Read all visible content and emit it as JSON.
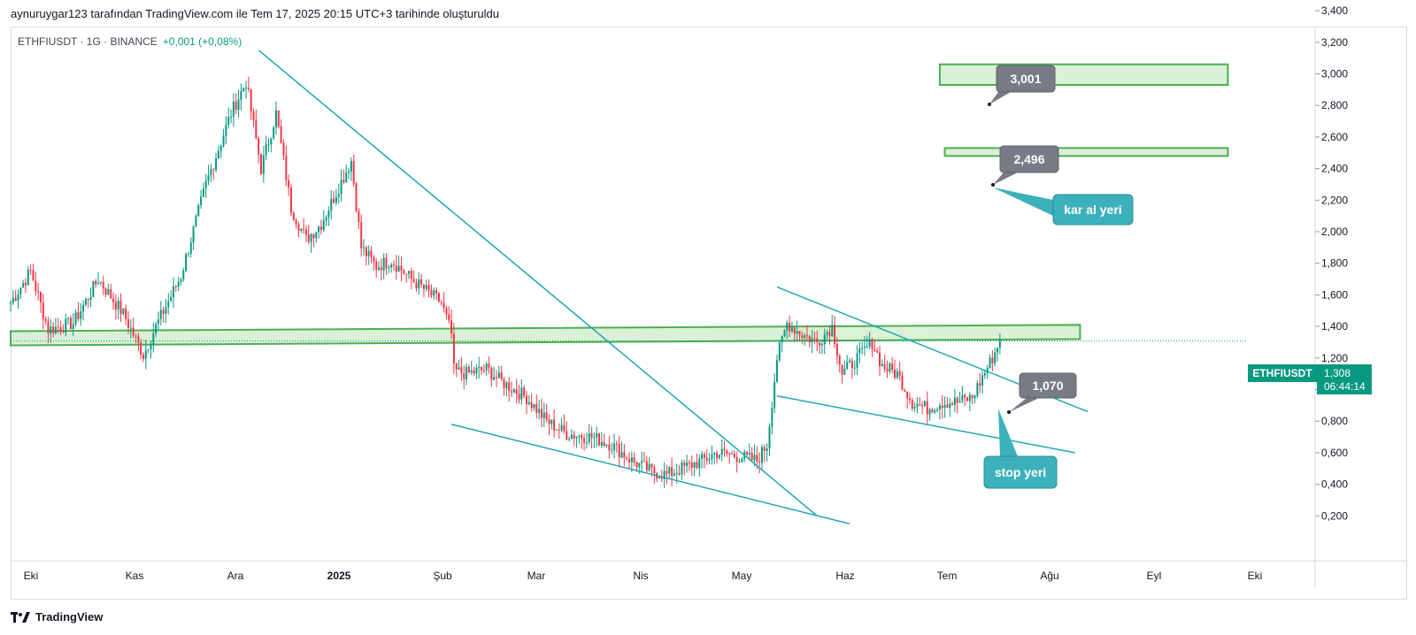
{
  "header": {
    "title": "aynuruygar123 tarafından TradingView.com ile Tem 17, 2025 20:15 UTC+3 tarihinde oluşturuldu"
  },
  "legend": {
    "symbol": "ETHFIUSDT · 1G · BINANCE",
    "change": "+0,001 (+0,08%)"
  },
  "footer": {
    "brand": "TradingView"
  },
  "price_tag": {
    "symbol": "ETHFIUSDT",
    "price": "1,308",
    "countdown": "06:44:14"
  },
  "annotations": {
    "target_high": "3,001",
    "target_low": "2,496",
    "take_profit": "kar al yeri",
    "entry": "1,070",
    "stop": "stop yeri"
  },
  "colors": {
    "up": "#089981",
    "down": "#f23645",
    "zone_fill": "#cdebc9",
    "zone_stroke": "#4caf50",
    "trendline": "#22a6b8",
    "callout_gray": "#787b86",
    "callout_teal": "#3cb1bb"
  },
  "chart_data": {
    "type": "candlestick",
    "title": "",
    "xlabel": "",
    "ylabel": "",
    "ylim": [
      0.1,
      3.5
    ],
    "y_ticks": [
      "3,400",
      "3,200",
      "3,000",
      "2,800",
      "2,600",
      "2,400",
      "2,200",
      "2,000",
      "1,800",
      "1,600",
      "1,400",
      "1,200",
      "1,000",
      "0,800",
      "0,600",
      "0,400",
      "0,200"
    ],
    "x_ticks": [
      "Eki",
      "Kas",
      "Ara",
      "2025",
      "Şub",
      "Mar",
      "Nis",
      "May",
      "Haz",
      "Tem",
      "Ağu",
      "Eyl",
      "Eki"
    ],
    "waypoints": [
      [
        0,
        1.55
      ],
      [
        8,
        1.75
      ],
      [
        15,
        1.38
      ],
      [
        25,
        1.42
      ],
      [
        35,
        1.7
      ],
      [
        45,
        1.48
      ],
      [
        53,
        1.22
      ],
      [
        58,
        1.4
      ],
      [
        68,
        1.72
      ],
      [
        78,
        2.3
      ],
      [
        88,
        2.75
      ],
      [
        94,
        2.95
      ],
      [
        100,
        2.4
      ],
      [
        106,
        2.75
      ],
      [
        112,
        2.15
      ],
      [
        118,
        1.95
      ],
      [
        124,
        2.05
      ],
      [
        130,
        2.25
      ],
      [
        136,
        2.45
      ],
      [
        140,
        1.9
      ],
      [
        146,
        1.78
      ],
      [
        152,
        1.82
      ],
      [
        160,
        1.7
      ],
      [
        168,
        1.6
      ],
      [
        172,
        1.55
      ],
      [
        176,
        1.35
      ],
      [
        177,
        1.12
      ],
      [
        182,
        1.1
      ],
      [
        190,
        1.13
      ],
      [
        196,
        1.05
      ],
      [
        206,
        0.95
      ],
      [
        214,
        0.8
      ],
      [
        222,
        0.72
      ],
      [
        232,
        0.7
      ],
      [
        240,
        0.65
      ],
      [
        248,
        0.55
      ],
      [
        256,
        0.48
      ],
      [
        262,
        0.46
      ],
      [
        268,
        0.5
      ],
      [
        276,
        0.55
      ],
      [
        282,
        0.6
      ],
      [
        290,
        0.58
      ],
      [
        298,
        0.55
      ],
      [
        302,
        0.65
      ],
      [
        306,
        1.2
      ],
      [
        310,
        1.42
      ],
      [
        316,
        1.35
      ],
      [
        322,
        1.3
      ],
      [
        328,
        1.4
      ],
      [
        332,
        1.1
      ],
      [
        338,
        1.2
      ],
      [
        344,
        1.3
      ],
      [
        348,
        1.15
      ],
      [
        354,
        1.1
      ],
      [
        360,
        0.92
      ],
      [
        366,
        0.88
      ],
      [
        372,
        0.92
      ],
      [
        378,
        0.92
      ],
      [
        384,
        0.95
      ],
      [
        388,
        1.08
      ],
      [
        392,
        1.2
      ],
      [
        395,
        1.308
      ]
    ],
    "zones": [
      {
        "x": [
          0,
          427
        ],
        "y_left": [
          1.28,
          1.37
        ],
        "y_right": [
          1.32,
          1.41
        ]
      },
      {
        "x": [
          371,
          486
        ],
        "y": [
          2.93,
          3.06
        ]
      },
      {
        "x": [
          373,
          486
        ],
        "y": [
          2.48,
          2.53
        ]
      }
    ],
    "trendlines": [
      {
        "from": [
          99,
          3.15
        ],
        "to": [
          322,
          0.2
        ]
      },
      {
        "from": [
          176,
          0.78
        ],
        "to": [
          335,
          0.15
        ]
      },
      {
        "from": [
          306,
          1.65
        ],
        "to": [
          430,
          0.86
        ]
      },
      {
        "from": [
          306,
          0.96
        ],
        "to": [
          425,
          0.6
        ]
      }
    ],
    "last_price": 1.308
  }
}
